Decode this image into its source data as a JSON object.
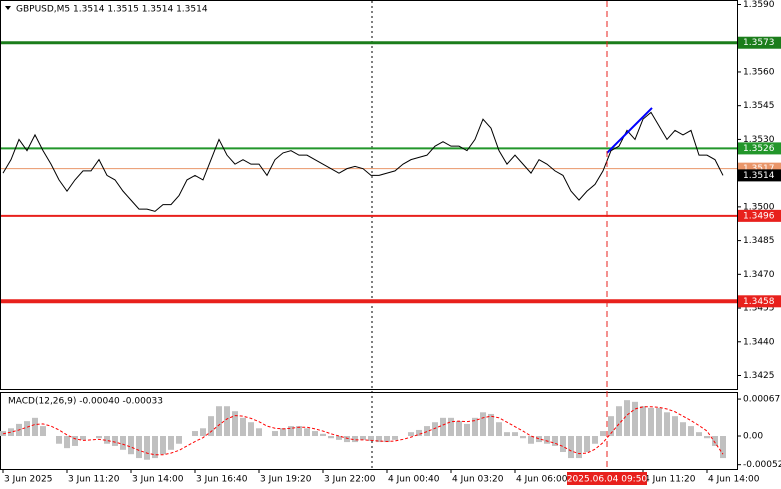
{
  "chart_data": [
    {
      "type": "line",
      "title": "GBPUSD,M5  1.3514 1.3515 1.3514 1.3514",
      "categories": [
        "3 Jun 2025",
        null,
        null,
        null,
        null,
        null,
        null,
        null,
        "3 Jun 11:20",
        null,
        null,
        null,
        null,
        null,
        null,
        null,
        "3 Jun 14:00",
        null,
        null,
        null,
        null,
        null,
        null,
        null,
        "3 Jun 16:40",
        null,
        null,
        null,
        null,
        null,
        null,
        null,
        "3 Jun 19:20",
        null,
        null,
        null,
        null,
        null,
        null,
        null,
        "3 Jun 22:00",
        null,
        null,
        null,
        null,
        null,
        null,
        null,
        "4 Jun 00:40",
        null,
        null,
        null,
        null,
        null,
        null,
        null,
        "4 Jun 03:20",
        null,
        null,
        null,
        null,
        null,
        null,
        null,
        "4 Jun 06:00",
        null,
        null,
        null,
        null,
        null,
        null,
        null,
        null,
        null,
        null,
        null,
        null,
        null,
        null,
        null,
        "4 Jun 11:20",
        null,
        null,
        null,
        null,
        null,
        null,
        null,
        "4 Jun 14:00",
        null,
        null
      ],
      "color": "#000000",
      "values": [
        1.3515,
        1.3521,
        1.353,
        1.3525,
        1.3532,
        1.3525,
        1.3519,
        1.3512,
        1.3507,
        1.3512,
        1.3516,
        1.3516,
        1.3521,
        1.3514,
        1.3512,
        1.3507,
        1.3503,
        1.3499,
        1.3499,
        1.3498,
        1.3501,
        1.3501,
        1.3505,
        1.3512,
        1.3514,
        1.3512,
        1.3521,
        1.353,
        1.3523,
        1.3519,
        1.3521,
        1.3519,
        1.3519,
        1.3514,
        1.3521,
        1.3524,
        1.3525,
        1.3523,
        1.3523,
        1.3521,
        1.3519,
        1.3517,
        1.3515,
        1.3517,
        1.3518,
        1.3517,
        1.3514,
        1.3514,
        1.3515,
        1.3516,
        1.3519,
        1.3521,
        1.3522,
        1.3523,
        1.3527,
        1.3529,
        1.3527,
        1.3527,
        1.3525,
        1.353,
        1.3539,
        1.3535,
        1.3525,
        1.3519,
        1.3523,
        1.3519,
        1.3515,
        1.3521,
        1.3519,
        1.3516,
        1.3514,
        1.3507,
        1.3503,
        1.3507,
        1.351,
        1.3516,
        1.3525,
        1.3527,
        1.3534,
        1.353,
        1.3539,
        1.3542,
        1.3536,
        1.353,
        1.3534,
        1.3532,
        1.3534,
        1.3523,
        1.3523,
        1.3521,
        1.3514
      ],
      "ylim": [
        1.3419,
        1.3592
      ],
      "yticks": [
        {
          "value": 1.359,
          "label": "1.3590"
        },
        {
          "value": 1.356,
          "label": "1.3560"
        },
        1.3545,
        {
          "value": 1.353,
          "label": "1.3530"
        },
        {
          "value": 1.35,
          "label": "1.3500"
        },
        1.3485,
        {
          "value": 1.347,
          "label": "1.3470"
        },
        1.3455,
        {
          "value": 1.344,
          "label": "1.3440"
        },
        1.3425
      ],
      "levels": [
        {
          "value": 1.3573,
          "label": "1.3573",
          "color": "#1b7d1b"
        },
        {
          "value": 1.3517,
          "label": "1.3517",
          "color": "#e9966a"
        },
        {
          "value": 1.3526,
          "label": "1.3526",
          "color": "#22962a"
        },
        {
          "value": 1.3496,
          "label": "1.3496",
          "color": "#e8201c"
        },
        {
          "value": 1.3458,
          "label": "1.3458",
          "color": "#e8201c"
        }
      ],
      "last": {
        "value": 1.3514,
        "label": "1.3514"
      },
      "trendline": {
        "color": "#0000ff",
        "values": [
          1.3524,
          1.3544
        ]
      },
      "crosshair_label": "2025.06.04 09:50"
    },
    {
      "type": "macd",
      "title": "MACD(12,26,9) -0.00040 -0.00033",
      "histogram": {
        "color": "#c0c0c0",
        "values": [
          9e-05,
          0.00014,
          0.00022,
          0.00027,
          0.00033,
          0.00018,
          0,
          -0.00014,
          -0.00022,
          -0.00018,
          -7e-05,
          0,
          -4e-05,
          -0.00014,
          -0.00018,
          -0.00025,
          -0.00033,
          -0.0004,
          -0.00043,
          -0.0004,
          -0.00033,
          -0.00025,
          -0.00014,
          0,
          9e-05,
          0.00014,
          0.00036,
          0.00054,
          0.00054,
          0.00045,
          0.00033,
          0.00025,
          0.00014,
          0,
          9e-05,
          0.00014,
          0.00018,
          0.00018,
          0.00014,
          9e-05,
          4e-05,
          -4e-05,
          -7e-05,
          -0.00011,
          -0.00011,
          -7e-05,
          -9e-05,
          -0.00011,
          -0.00011,
          -7e-05,
          0,
          7e-05,
          0.00011,
          0.00018,
          0.00025,
          0.00033,
          0.00033,
          0.00027,
          0.00022,
          0.00033,
          0.00043,
          0.0004,
          0.00025,
          7e-05,
          7e-05,
          -4e-05,
          -0.00014,
          -0.00011,
          -0.00014,
          -0.00018,
          -0.00029,
          -0.0004,
          -0.0004,
          -0.00029,
          -0.00014,
          9e-05,
          0.00036,
          0.00054,
          0.00065,
          0.00062,
          0.00054,
          0.00051,
          0.00051,
          0.00043,
          0.00036,
          0.00025,
          0.00018,
          7e-05,
          -4e-05,
          -0.00018,
          -0.0004
        ]
      },
      "signal": {
        "color": "#ff0000",
        "values": [
          4e-05,
          7e-05,
          0.00011,
          0.00016,
          0.00021,
          0.00022,
          0.00018,
          0.00011,
          2e-05,
          -5e-05,
          -8e-05,
          -7e-05,
          -6e-05,
          -8e-05,
          -0.00011,
          -0.00015,
          -0.0002,
          -0.00026,
          -0.00031,
          -0.00034,
          -0.00034,
          -0.00031,
          -0.00026,
          -0.00018,
          -0.0001,
          -3e-05,
          8e-05,
          0.0002,
          0.00031,
          0.00037,
          0.00036,
          0.00032,
          0.00026,
          0.00018,
          0.00014,
          0.00013,
          0.00014,
          0.00016,
          0.00016,
          0.00013,
          9e-05,
          4e-05,
          0,
          -4e-05,
          -7e-05,
          -7e-05,
          -8e-05,
          -9e-05,
          -0.0001,
          -9e-05,
          -6e-05,
          -2e-05,
          3e-05,
          8e-05,
          0.00014,
          0.0002,
          0.00026,
          0.00027,
          0.00026,
          0.00028,
          0.00033,
          0.00036,
          0.00033,
          0.00025,
          0.00017,
          9e-05,
          0,
          -5e-05,
          -9e-05,
          -0.00013,
          -0.00019,
          -0.00027,
          -0.00032,
          -0.00031,
          -0.00024,
          -0.00012,
          5e-05,
          0.00022,
          0.00038,
          0.00049,
          0.00053,
          0.00053,
          0.00052,
          0.00049,
          0.00044,
          0.00036,
          0.00028,
          0.00019,
          9e-05,
          -0.00012,
          -0.00033
        ]
      },
      "ylim": [
        -0.00058,
        0.00078
      ],
      "yticks": [
        0.00067,
        {
          "value": 0,
          "label": "0.00"
        },
        -0.00052
      ]
    }
  ]
}
